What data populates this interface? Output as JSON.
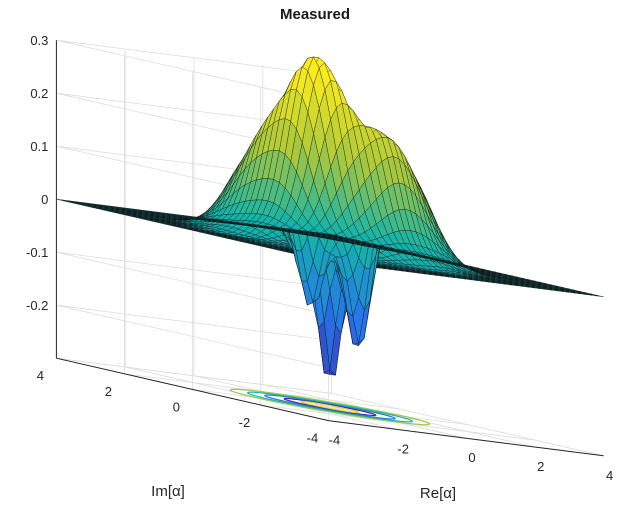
{
  "chart_data": {
    "type": "surface",
    "title": "Measured",
    "xlabel": "Re[α]",
    "ylabel": "Im[α]",
    "zlabel": "",
    "xlim": [
      -4,
      4
    ],
    "ylim": [
      -4,
      4
    ],
    "zlim": [
      -0.3,
      0.3
    ],
    "x_ticks": [
      "-4",
      "-2",
      "0",
      "2",
      "4"
    ],
    "y_ticks": [
      "-4",
      "-2",
      "0",
      "2",
      "4"
    ],
    "z_ticks": [
      "-0.2",
      "-0.1",
      "0",
      "0.1",
      "0.2",
      "0.3"
    ],
    "z_tick_values": [
      -0.2,
      -0.1,
      0,
      0.1,
      0.2,
      0.3
    ],
    "x_tick_values": [
      -4,
      -2,
      0,
      2,
      4
    ],
    "y_tick_values": [
      -4,
      -2,
      0,
      2,
      4
    ],
    "grid": true,
    "colormap": "parula",
    "z_max": 0.31,
    "z_min": -0.27,
    "contour_projection": true
  }
}
